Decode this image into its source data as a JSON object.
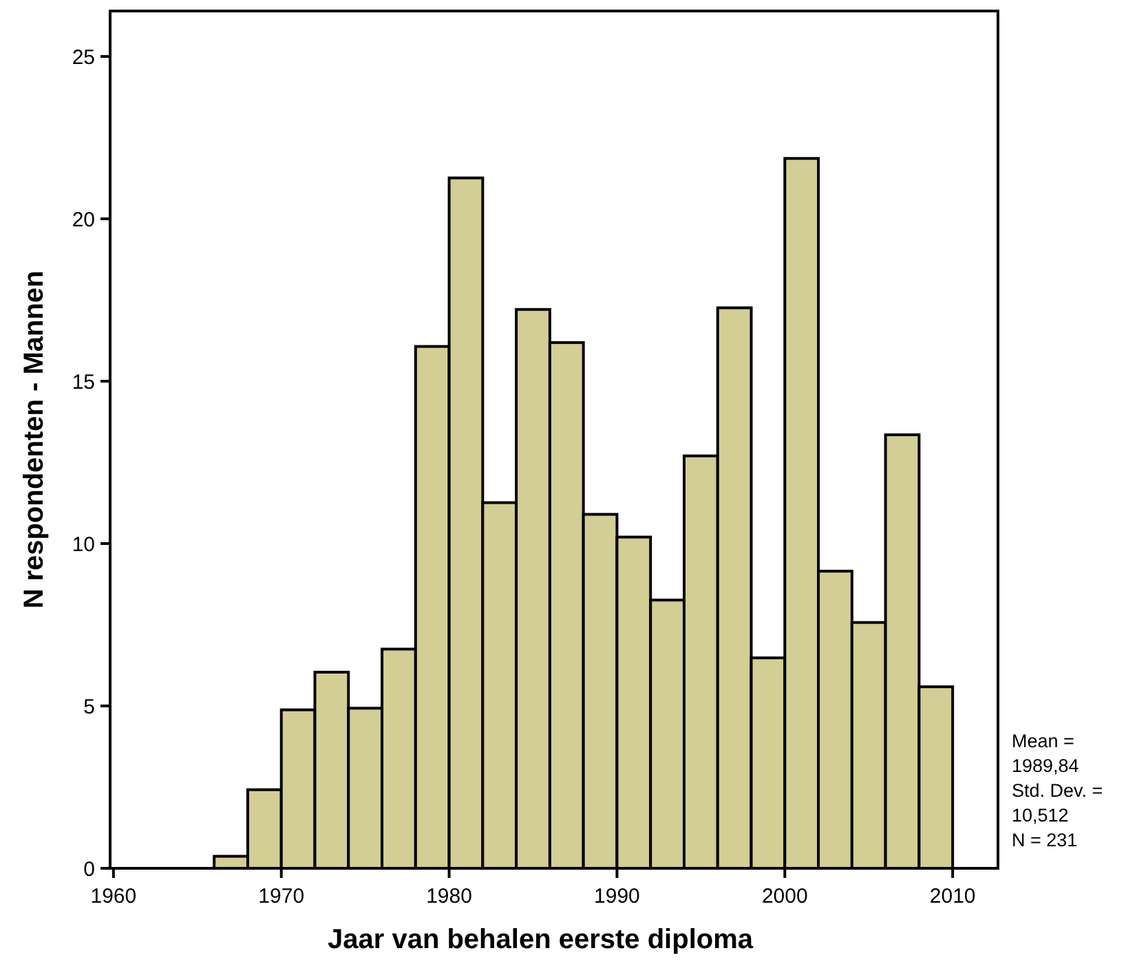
{
  "chart_data": {
    "type": "histogram",
    "xlabel": "Jaar van behalen eerste diploma",
    "ylabel": "N respondenten - Mannen",
    "bins": [
      1966,
      1968,
      1970,
      1972,
      1974,
      1976,
      1978,
      1980,
      1982,
      1984,
      1986,
      1988,
      1990,
      1992,
      1994,
      1996,
      1998,
      2000,
      2002,
      2004,
      2006,
      2008,
      2010
    ],
    "values": [
      0.37,
      2.42,
      4.88,
      6.04,
      4.93,
      6.75,
      16.07,
      21.26,
      11.26,
      17.21,
      16.19,
      10.9,
      10.2,
      8.26,
      12.7,
      17.26,
      6.48,
      21.86,
      9.15,
      7.57,
      13.35,
      5.59
    ],
    "color": "#d3cd96",
    "xlim": [
      1959.8,
      2012.7
    ],
    "xticks": [
      1960,
      1970,
      1980,
      1990,
      2000,
      2010
    ],
    "ylim": [
      0,
      26.4
    ],
    "yticks": [
      0,
      5,
      10,
      15,
      20,
      25
    ],
    "annotations": [
      "Mean = 1989,84",
      "Std. Dev. = 10,512",
      "N = 231"
    ]
  }
}
